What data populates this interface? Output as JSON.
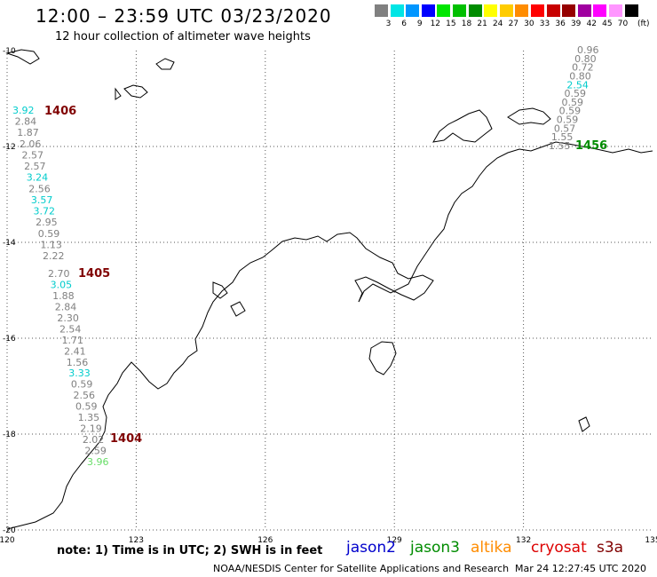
{
  "header": {
    "title": "12:00 – 23:59 UTC 03/23/2020",
    "subtitle": "12 hour collection of altimeter wave heights"
  },
  "legend": {
    "unit": "(ft)",
    "bins": [
      {
        "label": "3",
        "color": "#808080"
      },
      {
        "label": "6",
        "color": "#00e5e5"
      },
      {
        "label": "9",
        "color": "#0096ff"
      },
      {
        "label": "12",
        "color": "#0000ff"
      },
      {
        "label": "15",
        "color": "#00e600"
      },
      {
        "label": "18",
        "color": "#00c000"
      },
      {
        "label": "21",
        "color": "#008c00"
      },
      {
        "label": "24",
        "color": "#ffff00"
      },
      {
        "label": "27",
        "color": "#ffcc00"
      },
      {
        "label": "30",
        "color": "#ff8c00"
      },
      {
        "label": "33",
        "color": "#ff0000"
      },
      {
        "label": "36",
        "color": "#c80000"
      },
      {
        "label": "39",
        "color": "#960000"
      },
      {
        "label": "42",
        "color": "#a000a0"
      },
      {
        "label": "45",
        "color": "#ff00ff"
      },
      {
        "label": "70",
        "color": "#ff96ff"
      },
      {
        "label": "",
        "color": "#000000"
      }
    ]
  },
  "map": {
    "lon_ticks": [
      "120",
      "123",
      "126",
      "129",
      "132",
      "135"
    ],
    "lat_ticks": [
      "-10",
      "-12",
      "-14",
      "-16",
      "-18",
      "-20"
    ],
    "lon_range": [
      120,
      135
    ],
    "lat_range": [
      -20,
      -10
    ],
    "passes": [
      {
        "id": "1406",
        "color": "#800000"
      },
      {
        "id": "1405",
        "color": "#800000"
      },
      {
        "id": "1404",
        "color": "#800000"
      },
      {
        "id": "1456",
        "color": "#008c00"
      }
    ],
    "track_west": [
      {
        "v": "3.92",
        "c": "#00cccc"
      },
      {
        "v": "2.84",
        "c": "#808080"
      },
      {
        "v": "1.87",
        "c": "#808080"
      },
      {
        "v": "2.06",
        "c": "#808080"
      },
      {
        "v": "2.57",
        "c": "#808080"
      },
      {
        "v": "2.57",
        "c": "#808080"
      },
      {
        "v": "3.24",
        "c": "#00cccc"
      },
      {
        "v": "2.56",
        "c": "#808080"
      },
      {
        "v": "3.57",
        "c": "#00cccc"
      },
      {
        "v": "3.72",
        "c": "#00cccc"
      },
      {
        "v": "2.95",
        "c": "#808080"
      },
      {
        "v": "0.59",
        "c": "#808080"
      },
      {
        "v": "1.13",
        "c": "#808080"
      },
      {
        "v": "2.22",
        "c": "#808080"
      }
    ],
    "track_mid": [
      {
        "v": "2.70",
        "c": "#808080"
      },
      {
        "v": "3.05",
        "c": "#00cccc"
      },
      {
        "v": "1.88",
        "c": "#808080"
      },
      {
        "v": "2.84",
        "c": "#808080"
      },
      {
        "v": "2.30",
        "c": "#808080"
      },
      {
        "v": "2.54",
        "c": "#808080"
      },
      {
        "v": "1.71",
        "c": "#808080"
      },
      {
        "v": "2.41",
        "c": "#808080"
      },
      {
        "v": "1.56",
        "c": "#808080"
      },
      {
        "v": "3.33",
        "c": "#00cccc"
      },
      {
        "v": "0.59",
        "c": "#808080"
      },
      {
        "v": "2.56",
        "c": "#808080"
      },
      {
        "v": "0.59",
        "c": "#808080"
      },
      {
        "v": "1.35",
        "c": "#808080"
      },
      {
        "v": "2.19",
        "c": "#808080"
      },
      {
        "v": "2.02",
        "c": "#808080"
      },
      {
        "v": "2.59",
        "c": "#808080"
      },
      {
        "v": "3.96",
        "c": "#66dd66"
      }
    ],
    "track_east": [
      {
        "v": "0.96",
        "c": "#808080"
      },
      {
        "v": "0.80",
        "c": "#808080"
      },
      {
        "v": "0.72",
        "c": "#808080"
      },
      {
        "v": "0.80",
        "c": "#808080"
      },
      {
        "v": "2.54",
        "c": "#00cccc"
      },
      {
        "v": "0.59",
        "c": "#808080"
      },
      {
        "v": "0.59",
        "c": "#808080"
      },
      {
        "v": "0.59",
        "c": "#808080"
      },
      {
        "v": "0.59",
        "c": "#808080"
      },
      {
        "v": "0.57",
        "c": "#808080"
      },
      {
        "v": "1.55",
        "c": "#808080"
      },
      {
        "v": "1.55",
        "c": "#808080"
      }
    ]
  },
  "footer": {
    "note": "note: 1) Time is in UTC; 2) SWH is in feet",
    "satellites": [
      {
        "name": "jason2",
        "color": "#0000cc"
      },
      {
        "name": "jason3",
        "color": "#008c00"
      },
      {
        "name": "altika",
        "color": "#ff8c00"
      },
      {
        "name": "cryosat",
        "color": "#dd0000"
      },
      {
        "name": "s3a",
        "color": "#800000"
      }
    ],
    "credit": "NOAA/NESDIS Center for Satellite Applications and Research",
    "timestamp": "Mar 24 12:27:45 UTC 2020"
  }
}
